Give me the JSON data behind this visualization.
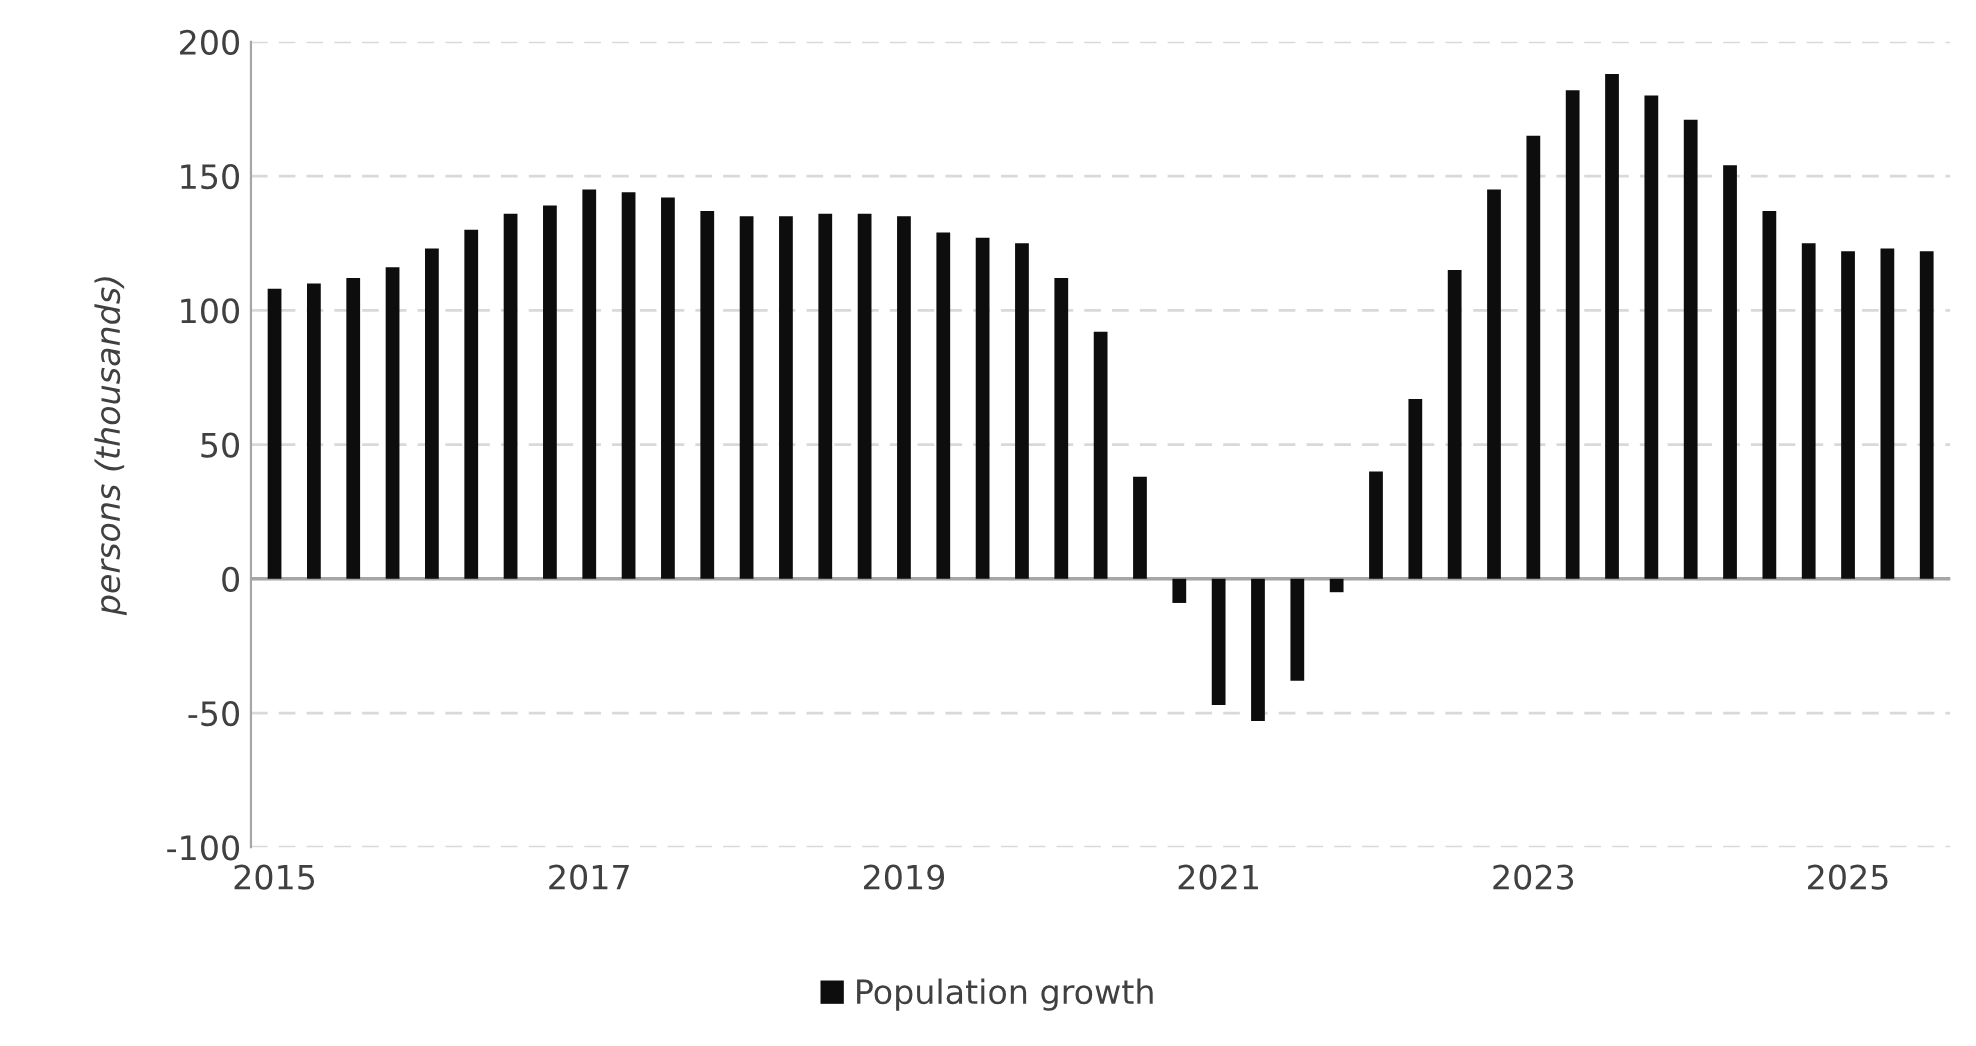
{
  "chart_data": {
    "type": "bar",
    "ylabel": "persons (thousands)",
    "categories": [
      "2015",
      null,
      null,
      null,
      null,
      null,
      null,
      null,
      "2017",
      null,
      null,
      null,
      null,
      null,
      null,
      null,
      "2019",
      null,
      null,
      null,
      null,
      null,
      null,
      null,
      "2021",
      null,
      null,
      null,
      null,
      null,
      null,
      null,
      "2023",
      null,
      null,
      null,
      null,
      null,
      null,
      null,
      "2025",
      null,
      null
    ],
    "series": [
      {
        "name": "Population growth",
        "color": "#0d0d0d",
        "values": [
          108,
          110,
          112,
          116,
          123,
          130,
          136,
          139,
          145,
          144,
          142,
          137,
          135,
          135,
          136,
          136,
          135,
          129,
          127,
          125,
          112,
          92,
          38,
          -9,
          -47,
          -53,
          -38,
          -5,
          40,
          67,
          115,
          145,
          165,
          182,
          188,
          180,
          171,
          154,
          137,
          125,
          122,
          123,
          122
        ]
      }
    ],
    "ylim": [
      -100,
      200
    ],
    "yticks": [
      -100,
      -50,
      0,
      50,
      100,
      150,
      200
    ],
    "grid": "y",
    "legend": "bottom"
  }
}
